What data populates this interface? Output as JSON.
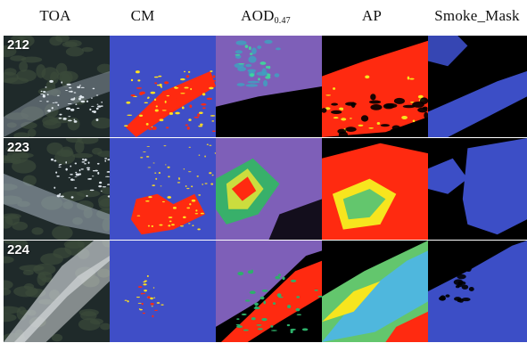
{
  "columns": [
    {
      "key": "toa",
      "label": "TOA",
      "sub": ""
    },
    {
      "key": "cm",
      "label": "CM",
      "sub": ""
    },
    {
      "key": "aod",
      "label": "AOD",
      "sub": "0.47"
    },
    {
      "key": "ap",
      "label": "AP",
      "sub": ""
    },
    {
      "key": "smoke",
      "label": "Smoke_Mask",
      "sub": ""
    }
  ],
  "rows": [
    {
      "label": "212"
    },
    {
      "label": "223"
    },
    {
      "label": "224"
    }
  ],
  "colors": {
    "cm_background": "#3f4ec7",
    "cm_red": "#ff2a10",
    "cm_yellow": "#ffe020",
    "aod_background": "#7e5fb8",
    "aod_black": "#000000",
    "ap_red": "#ff2a10",
    "ap_yellow": "#f7e51e",
    "ap_green": "#63c66d",
    "ap_cyan": "#4fb7dd",
    "smoke_blue": "#3c4ec6",
    "toa_dark": "#1f2a2a",
    "toa_white": "#e6edf3"
  }
}
